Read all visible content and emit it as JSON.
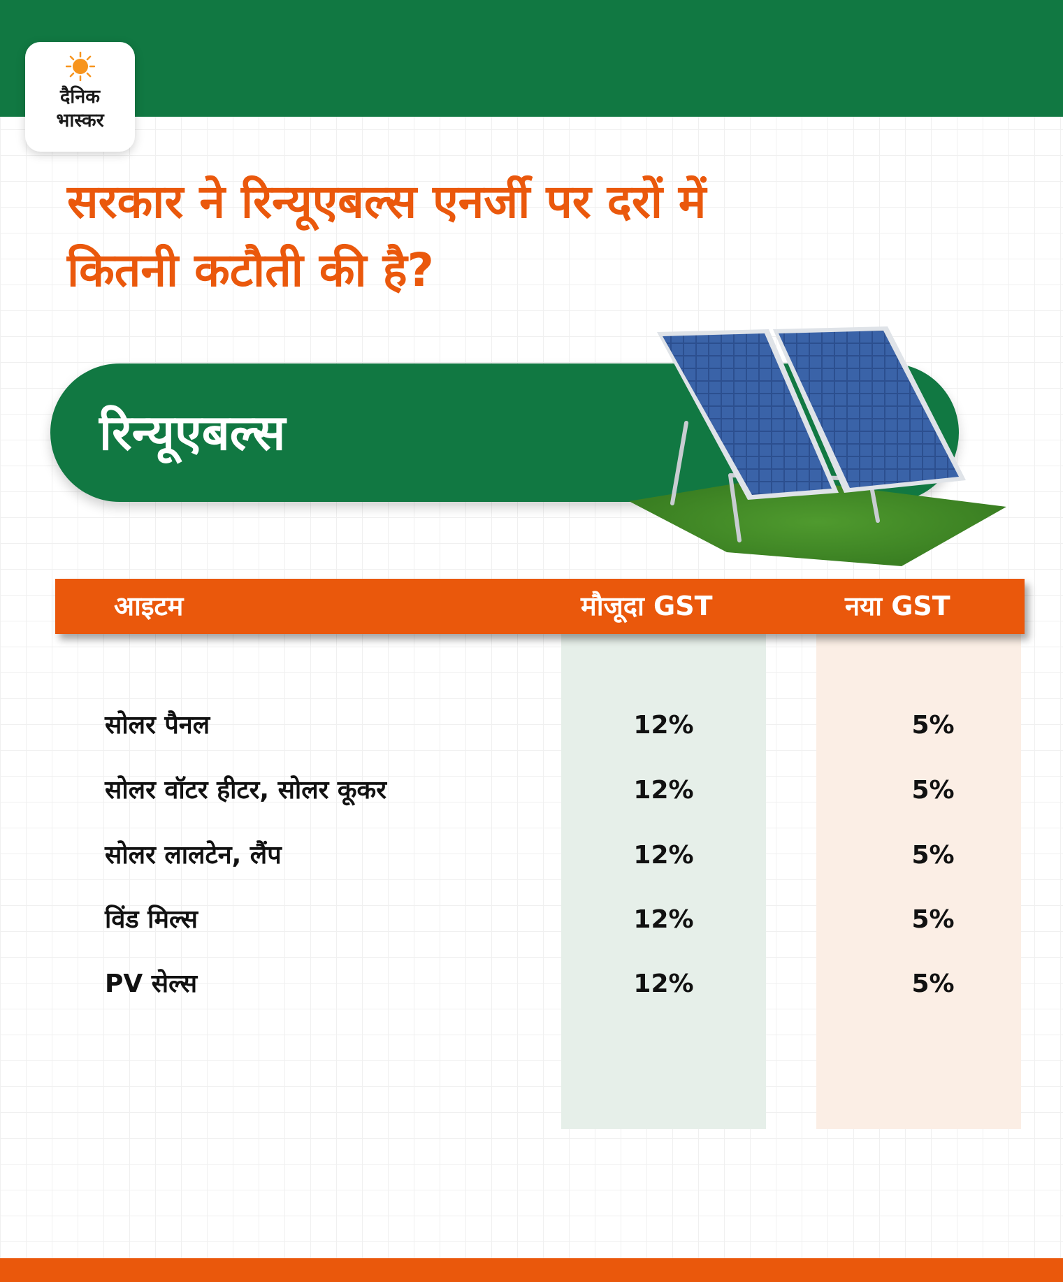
{
  "brand": {
    "line1": "दैनिक",
    "line2": "भास्कर"
  },
  "headline": {
    "line1": "सरकार ने रिन्यूएबल्स एनर्जी पर दरों में",
    "line2": "कितनी कटौती की है?"
  },
  "category": {
    "label": "रिन्यूएबल्स"
  },
  "table": {
    "headers": {
      "item": "आइटम",
      "current": "मौजूदा GST",
      "new": "नया GST"
    },
    "rows": [
      {
        "item": "सोलर पैनल",
        "current": "12%",
        "new": "5%"
      },
      {
        "item": "सोलर वॉटर हीटर, सोलर कूकर",
        "current": "12%",
        "new": "5%"
      },
      {
        "item": "सोलर लालटेन, लैंप",
        "current": "12%",
        "new": "5%"
      },
      {
        "item": "विंड मिल्स",
        "current": "12%",
        "new": "5%"
      },
      {
        "item": "PV सेल्स",
        "current": "12%",
        "new": "5%"
      }
    ]
  },
  "colors": {
    "brand_green": "#117842",
    "brand_orange": "#ea580c",
    "current_column_tint": "#e6efe9",
    "new_column_tint": "#fbeee5"
  },
  "icons": [
    "sun-logo-icon",
    "solar-panel-illustration"
  ]
}
